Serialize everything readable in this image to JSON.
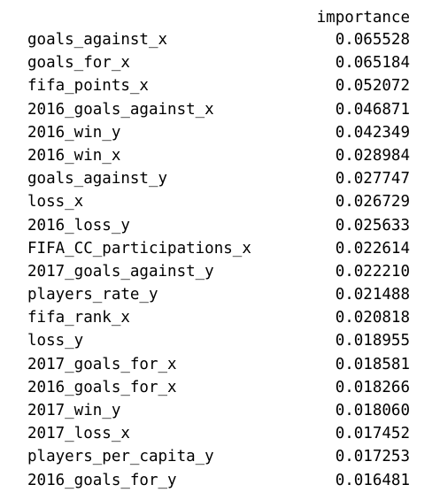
{
  "column_header": "importance",
  "rows": [
    {
      "name": "goals_against_x",
      "value": "0.065528"
    },
    {
      "name": "goals_for_x",
      "value": "0.065184"
    },
    {
      "name": "fifa_points_x",
      "value": "0.052072"
    },
    {
      "name": "2016_goals_against_x",
      "value": "0.046871"
    },
    {
      "name": "2016_win_y",
      "value": "0.042349"
    },
    {
      "name": "2016_win_x",
      "value": "0.028984"
    },
    {
      "name": "goals_against_y",
      "value": "0.027747"
    },
    {
      "name": "loss_x",
      "value": "0.026729"
    },
    {
      "name": "2016_loss_y",
      "value": "0.025633"
    },
    {
      "name": "FIFA_CC_participations_x",
      "value": "0.022614"
    },
    {
      "name": "2017_goals_against_y",
      "value": "0.022210"
    },
    {
      "name": "players_rate_y",
      "value": "0.021488"
    },
    {
      "name": "fifa_rank_x",
      "value": "0.020818"
    },
    {
      "name": "loss_y",
      "value": "0.018955"
    },
    {
      "name": "2017_goals_for_x",
      "value": "0.018581"
    },
    {
      "name": "2016_goals_for_x",
      "value": "0.018266"
    },
    {
      "name": "2017_win_y",
      "value": "0.018060"
    },
    {
      "name": "2017_loss_x",
      "value": "0.017452"
    },
    {
      "name": "players_per_capita_y",
      "value": "0.017253"
    },
    {
      "name": "2016_goals_for_y",
      "value": "0.016481"
    }
  ]
}
